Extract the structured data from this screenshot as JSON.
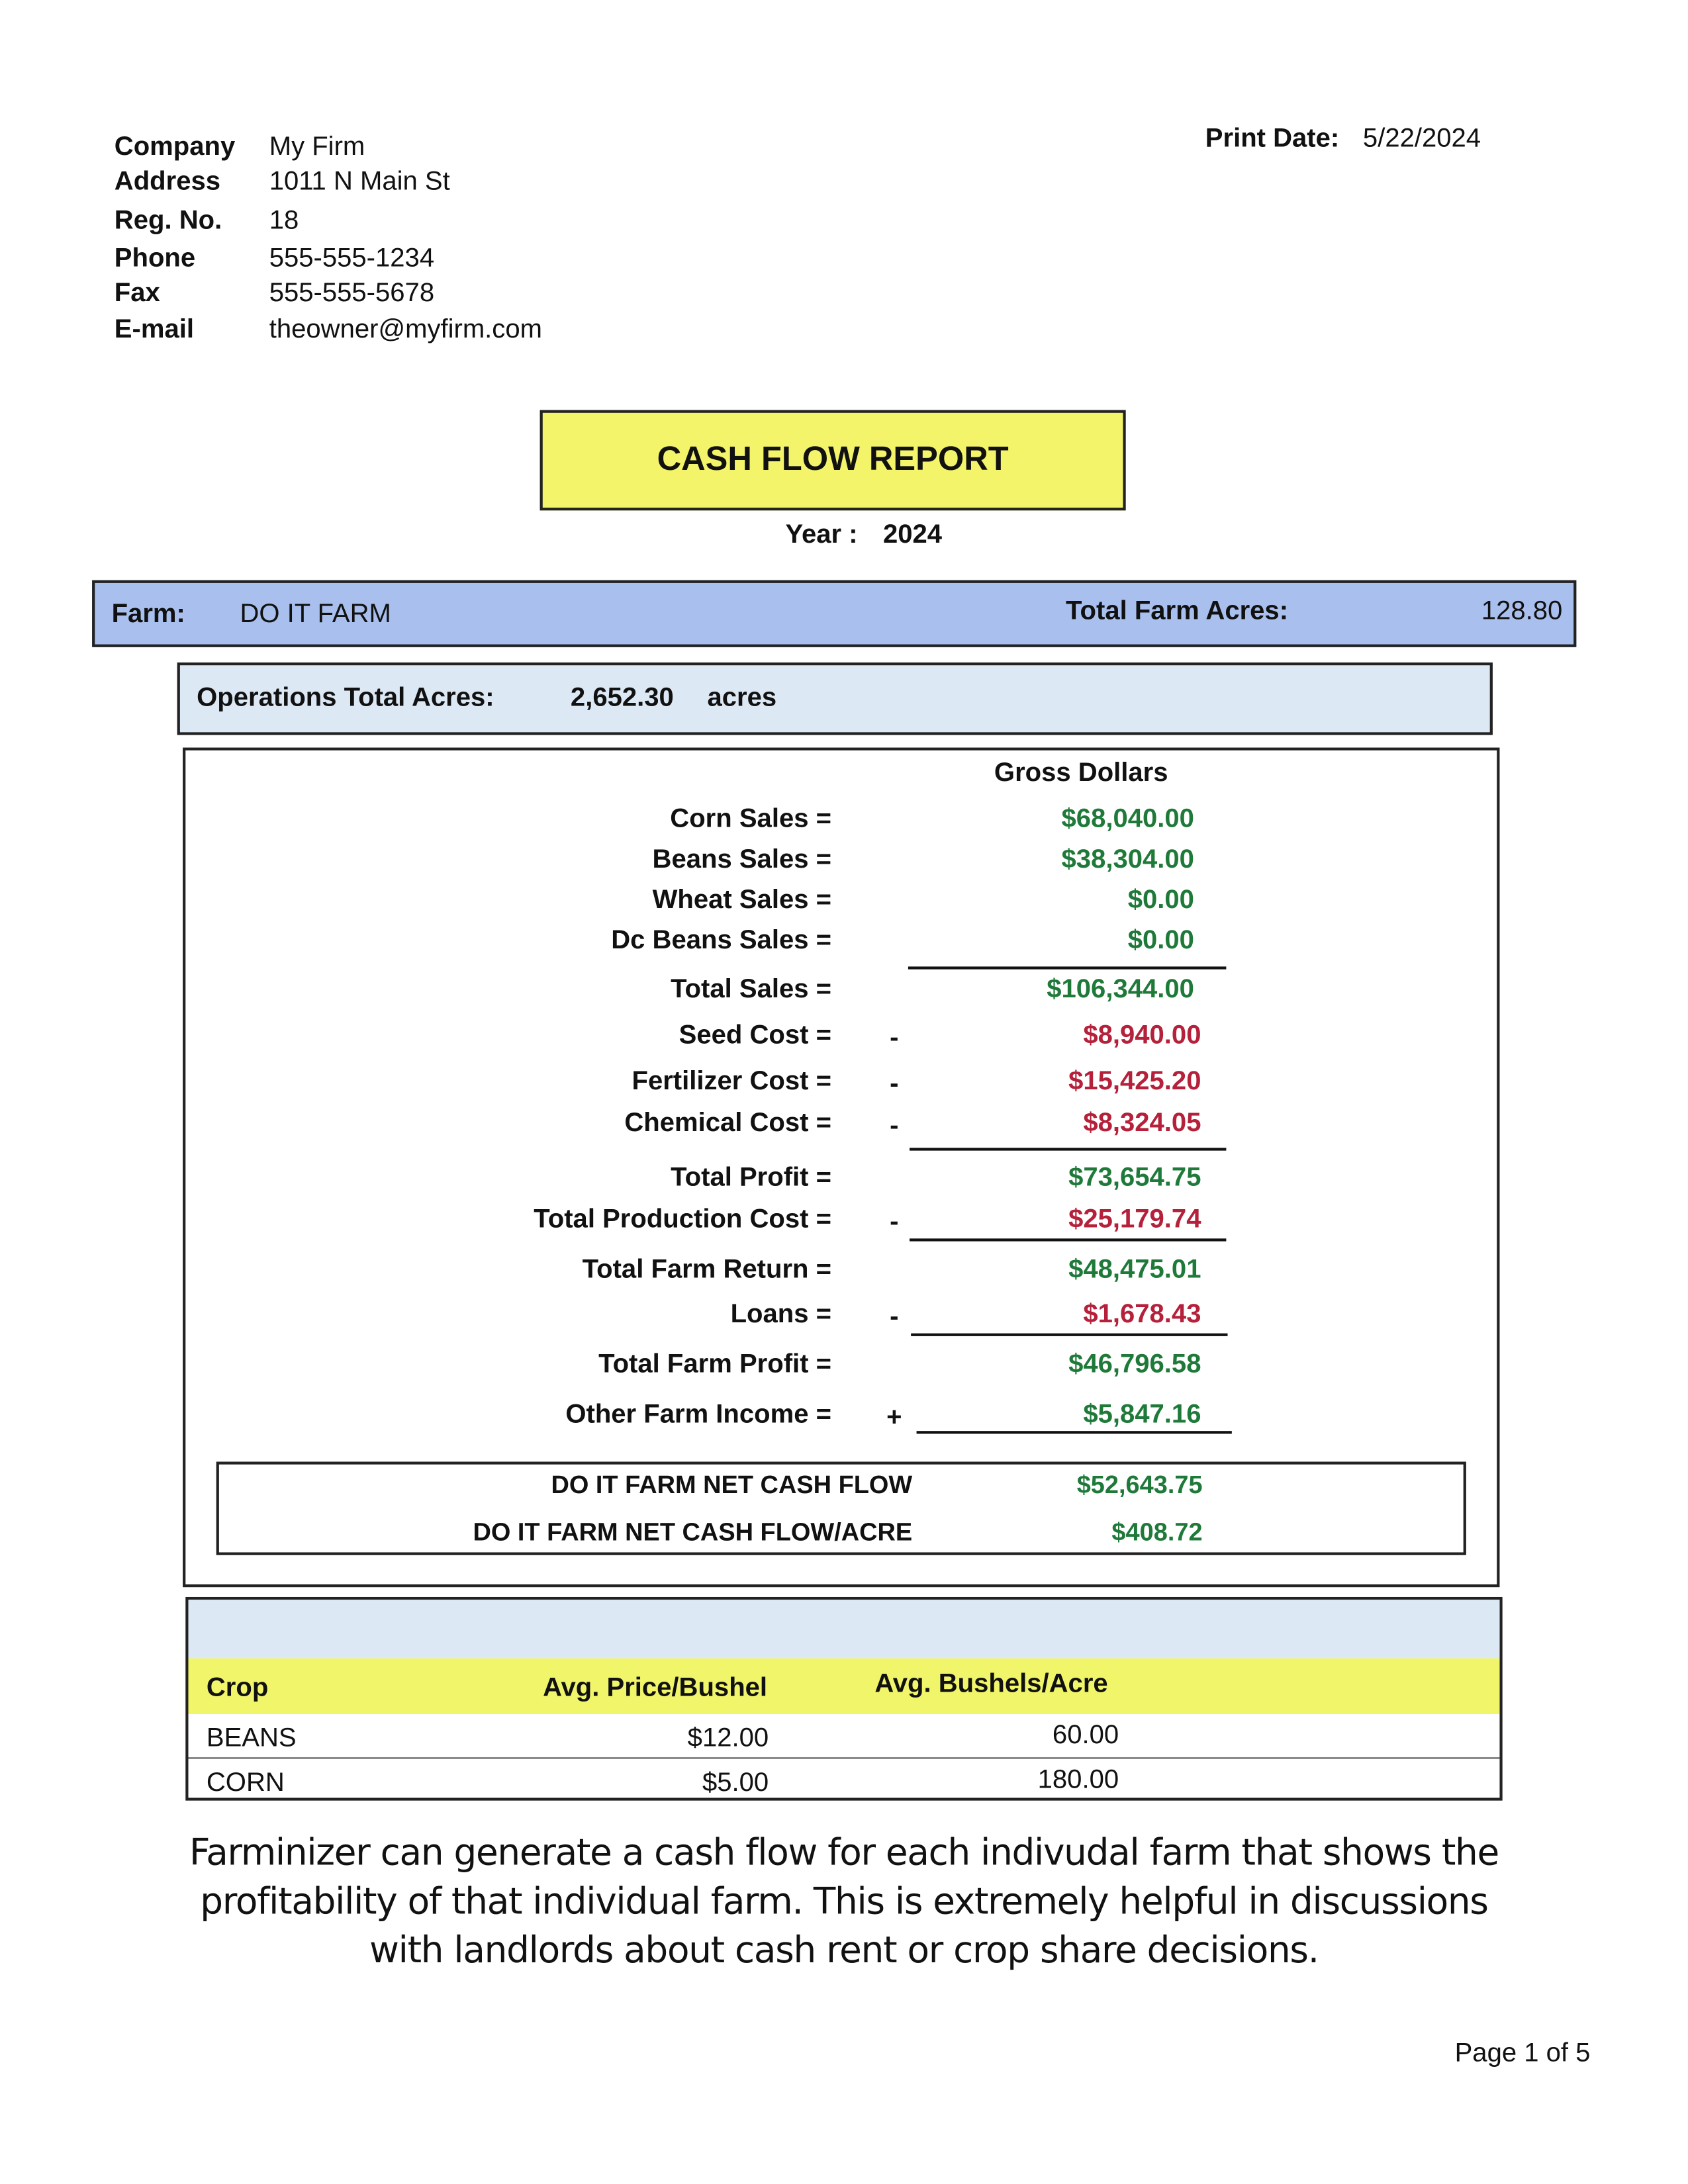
{
  "company_info": [
    {
      "label": "Company",
      "value": "My Firm"
    },
    {
      "label": "Address",
      "value": "1011 N Main St"
    },
    {
      "label": "Reg. No.",
      "value": "18"
    },
    {
      "label": "Phone",
      "value": "555-555-1234"
    },
    {
      "label": "Fax",
      "value": "555-555-5678"
    },
    {
      "label": "E-mail",
      "value": "theowner@myfirm.com"
    }
  ],
  "print_date": {
    "label": "Print Date:",
    "value": "5/22/2024"
  },
  "title": "CASH FLOW REPORT",
  "year": {
    "label": "Year :",
    "value": "2024"
  },
  "farm": {
    "label": "Farm:",
    "name": "DO IT FARM",
    "acres_label": "Total Farm Acres:",
    "acres": "128.80"
  },
  "operations": {
    "label": "Operations Total Acres:",
    "value": "2,652.30",
    "unit": "acres"
  },
  "gross_header": "Gross Dollars",
  "rows": [
    {
      "label": "Corn Sales =",
      "sign": "",
      "amount": "$68,040.00",
      "color": "green"
    },
    {
      "label": "Beans Sales =",
      "sign": "",
      "amount": "$38,304.00",
      "color": "green"
    },
    {
      "label": "Wheat Sales =",
      "sign": "",
      "amount": "$0.00",
      "color": "green"
    },
    {
      "label": "Dc Beans Sales =",
      "sign": "",
      "amount": "$0.00",
      "color": "green"
    },
    {
      "label": "Total Sales =",
      "sign": "",
      "amount": "$106,344.00",
      "color": "green"
    },
    {
      "label": "Seed Cost =",
      "sign": "-",
      "amount": "$8,940.00",
      "color": "red"
    },
    {
      "label": "Fertilizer Cost =",
      "sign": "-",
      "amount": "$15,425.20",
      "color": "red"
    },
    {
      "label": "Chemical Cost =",
      "sign": "-",
      "amount": "$8,324.05",
      "color": "red"
    },
    {
      "label": "Total Profit  =",
      "sign": "",
      "amount": "$73,654.75",
      "color": "green"
    },
    {
      "label": "Total Production Cost =",
      "sign": "-",
      "amount": "$25,179.74",
      "color": "red"
    },
    {
      "label": "Total Farm Return =",
      "sign": "",
      "amount": "$48,475.01",
      "color": "green"
    },
    {
      "label": "Loans =",
      "sign": "-",
      "amount": "$1,678.43",
      "color": "red"
    },
    {
      "label": "Total Farm Profit =",
      "sign": "",
      "amount": "$46,796.58",
      "color": "green"
    },
    {
      "label": "Other Farm Income =",
      "sign": "+",
      "amount": "$5,847.16",
      "color": "green"
    }
  ],
  "net": [
    {
      "label": "DO IT FARM NET CASH FLOW",
      "amount": "$52,643.75"
    },
    {
      "label": "DO IT FARM NET CASH FLOW/ACRE",
      "amount": "$408.72"
    }
  ],
  "crop_table": {
    "headers": [
      "Crop",
      "Avg. Price/Bushel",
      "Avg. Bushels/Acre"
    ],
    "rows": [
      [
        "BEANS",
        "$12.00",
        "60.00"
      ],
      [
        "CORN",
        "$5.00",
        "180.00"
      ]
    ]
  },
  "caption": [
    "Farminizer can generate a cash flow for each indivudal farm that shows the",
    "profitability of that individual farm.  This is extremely helpful in discussions",
    "with landlords about cash rent or crop share decisions."
  ],
  "page_number": "Page 1 of 5",
  "colors": {
    "positive": "#1f7a3a",
    "negative": "#b5203a",
    "title_bg": "#f4f46a",
    "farm_bar": "#a9c0ee",
    "ops_bg": "#dde8f5"
  }
}
